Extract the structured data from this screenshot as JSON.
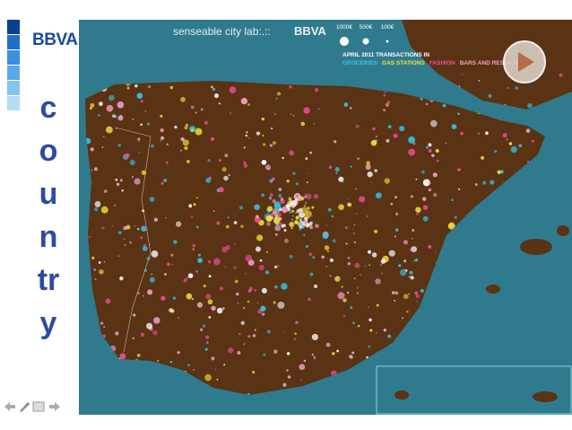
{
  "sidebar": {
    "logo": "BBVA",
    "side_word": "country"
  },
  "map": {
    "lab_name": "senseable city lab:.::",
    "brand": "BBVA",
    "size_legend": [
      "1000€",
      "500€",
      "100€"
    ],
    "subtitle": "APRIL 2011 TRANSACTIONS IN",
    "categories": [
      {
        "name": "GROCERIES",
        "color": "#33c6e8"
      },
      {
        "name": "GAS STATIONS",
        "color": "#f2e23a"
      },
      {
        "name": "FASHION",
        "color": "#f04ca0"
      },
      {
        "name": "BARS AND RESTAURANTS",
        "color": "#f2a0c8"
      }
    ]
  }
}
